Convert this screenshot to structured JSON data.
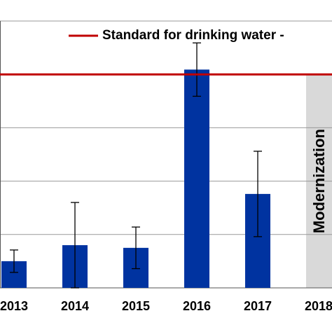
{
  "chart_data": {
    "type": "bar",
    "categories": [
      "2013",
      "2014",
      "2015",
      "2016",
      "2017",
      "2018"
    ],
    "values": [
      0.5,
      0.8,
      0.75,
      4.09,
      1.76,
      null
    ],
    "errors": [
      0.21,
      0.8,
      0.39,
      0.5,
      0.8,
      null
    ],
    "color": "#0033a0",
    "ylim": [
      0,
      5
    ],
    "yticks": [
      0,
      1,
      2,
      3,
      4,
      5
    ],
    "grid": true,
    "standard": {
      "label": "Standard for drinking water -",
      "value": 4,
      "color": "#c00000"
    },
    "annotation": {
      "text": "Modernization",
      "category": 5
    }
  }
}
